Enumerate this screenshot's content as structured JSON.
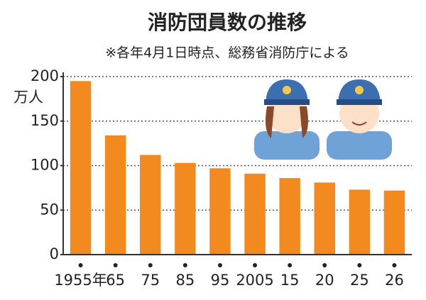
{
  "chart_data": {
    "type": "bar",
    "title": "消防団員数の推移",
    "subtitle": "※各年4月1日時点、総務省消防庁による",
    "y_label": "万人",
    "categories": [
      "1955年",
      "65",
      "75",
      "85",
      "95",
      "2005",
      "15",
      "20",
      "25",
      "26"
    ],
    "values": [
      195,
      134,
      112,
      103,
      97,
      91,
      86,
      81,
      73,
      72
    ],
    "color": "#f28a1f",
    "ylim": [
      0,
      200
    ],
    "yticks": [
      0,
      50,
      100,
      150,
      200
    ],
    "grid": true
  }
}
